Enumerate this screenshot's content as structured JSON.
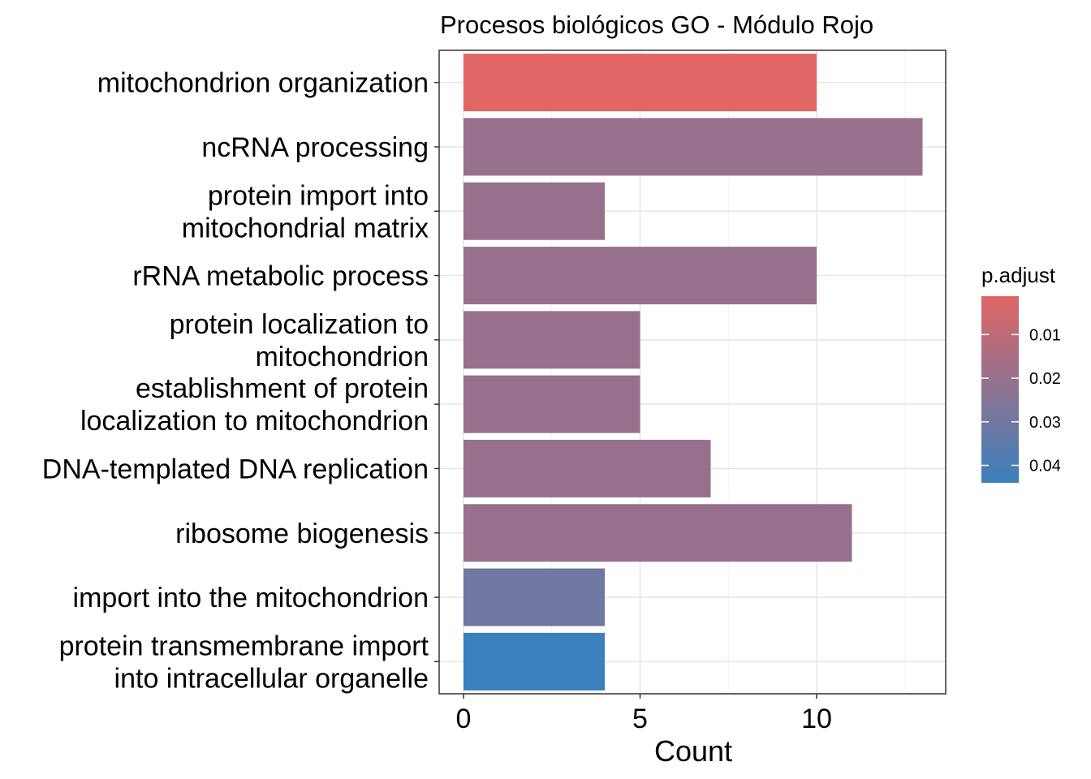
{
  "chart_data": {
    "type": "bar",
    "orientation": "horizontal",
    "title": "Procesos biológicos GO - Módulo Rojo",
    "xlabel": "Count",
    "ylabel": "",
    "xlim": [
      0,
      13.6
    ],
    "x_ticks": [
      0,
      5,
      10
    ],
    "grid": true,
    "categories": [
      [
        "mitochondrion organization"
      ],
      [
        "ncRNA processing"
      ],
      [
        "protein import into",
        "mitochondrial matrix"
      ],
      [
        "rRNA metabolic process"
      ],
      [
        "protein localization to",
        "mitochondrion"
      ],
      [
        "establishment of protein",
        "localization to mitochondrion"
      ],
      [
        "DNA-templated DNA replication"
      ],
      [
        "ribosome biogenesis"
      ],
      [
        "import into the mitochondrion"
      ],
      [
        "protein transmembrane import",
        "into intracellular organelle"
      ]
    ],
    "values": [
      10,
      13,
      4,
      10,
      5,
      5,
      7,
      11,
      4,
      4
    ],
    "p_adjust": [
      0.0012,
      0.02,
      0.02,
      0.02,
      0.02,
      0.02,
      0.02,
      0.02,
      0.03,
      0.044
    ],
    "legend": {
      "title": "p.adjust",
      "position": "right",
      "ticks": [
        "0.01",
        "0.02",
        "0.03",
        "0.04"
      ],
      "tick_values": [
        0.01,
        0.02,
        0.03,
        0.04
      ],
      "range": [
        0.0012,
        0.044
      ],
      "color_low": "#E06666",
      "color_high": "#3A80BD"
    },
    "colors": {
      "panel_border": "#333333",
      "grid_major": "#E5E5E5",
      "grid_minor": "#F2F2F2"
    }
  }
}
